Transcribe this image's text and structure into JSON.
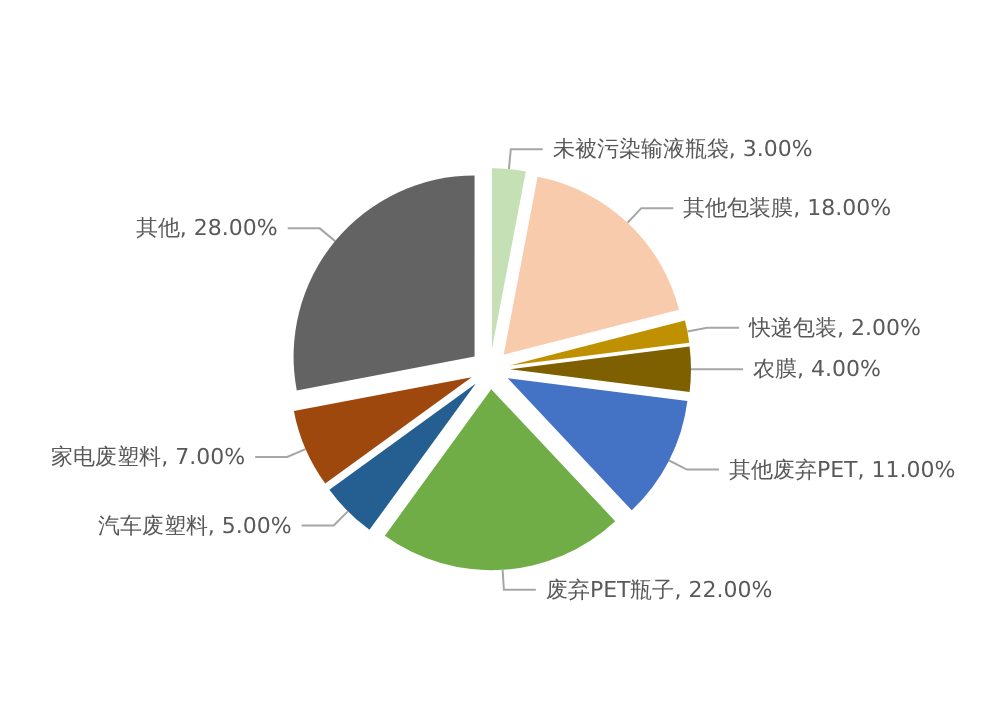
{
  "chart_data": {
    "type": "pie",
    "categories": [
      "未被污染输液瓶袋",
      "其他包装膜",
      "快递包装",
      "农膜",
      "其他废弃PET",
      "废弃PET瓶子",
      "汽车废塑料",
      "家电废塑料",
      "其他"
    ],
    "values": [
      3,
      18,
      2,
      4,
      11,
      22,
      5,
      7,
      28
    ],
    "value_labels": [
      "3.00%",
      "18.00%",
      "2.00%",
      "4.00%",
      "11.00%",
      "22.00%",
      "5.00%",
      "7.00%",
      "28.00%"
    ],
    "colors": [
      "#c5e0b4",
      "#f8cbad",
      "#bf9000",
      "#7f6000",
      "#4472c4",
      "#70ad47",
      "#255e91",
      "#9e480e",
      "#636363"
    ],
    "legend": false
  }
}
